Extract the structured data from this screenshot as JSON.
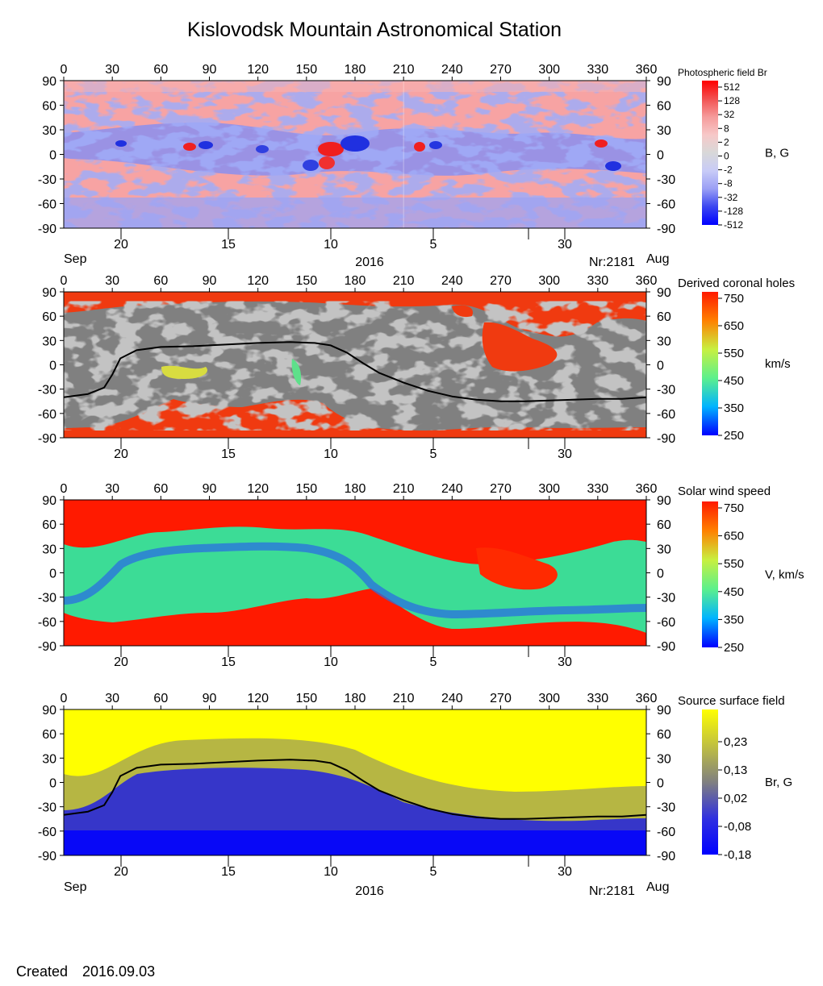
{
  "title": "Kislovodsk Mountain Astronomical Station",
  "created_label": "Created",
  "created_date": "2016.09.03",
  "bottom_axis": {
    "left_month": "Sep",
    "right_month": "Aug",
    "year": "2016",
    "rotation": "Nr:2181"
  },
  "colors": {
    "positive_field": "#f24a4a",
    "negative_field": "#4a55e6",
    "coronal_hole_dark": "#808080",
    "coronal_hole_light": "#c3c3c3",
    "fast_wind": "#ff1a00",
    "slow_wind": "#3cdc96",
    "neutral_line": "#000000",
    "source_surface_high": "#ffff00",
    "source_surface_low": "#0000ff"
  },
  "chart_data": [
    {
      "type": "heatmap",
      "id": "photospheric",
      "colorbar_title": "Photospheric field Br",
      "colorbar_unit": "B, G",
      "colorbar_ticks": [
        "512",
        "128",
        "32",
        "8",
        "2",
        "0",
        "-2",
        "-8",
        "-32",
        "-128",
        "-512"
      ],
      "x_ticks": [
        "0",
        "30",
        "60",
        "90",
        "120",
        "150",
        "180",
        "210",
        "240",
        "270",
        "300",
        "330",
        "360"
      ],
      "y_ticks": [
        "90",
        "60",
        "30",
        "0",
        "-30",
        "-60",
        "-90"
      ],
      "date_ticks": [
        "20",
        "15",
        "10",
        "5",
        "30"
      ],
      "xlim": [
        0,
        360
      ],
      "ylim": [
        -90,
        90
      ]
    },
    {
      "type": "heatmap",
      "id": "coronal-holes",
      "colorbar_title": "Derived coronal holes",
      "colorbar_unit": "km/s",
      "colorbar_ticks": [
        "750",
        "650",
        "550",
        "450",
        "350",
        "250"
      ],
      "x_ticks": [
        "0",
        "30",
        "60",
        "90",
        "120",
        "150",
        "180",
        "210",
        "240",
        "270",
        "300",
        "330",
        "360"
      ],
      "y_ticks": [
        "90",
        "60",
        "30",
        "0",
        "-30",
        "-60",
        "-90"
      ],
      "date_ticks": [
        "20",
        "15",
        "10",
        "5",
        "30"
      ],
      "xlim": [
        0,
        360
      ],
      "ylim": [
        -90,
        90
      ]
    },
    {
      "type": "heatmap",
      "id": "solar-wind",
      "colorbar_title": "Solar wind speed",
      "colorbar_unit": "V, km/s",
      "colorbar_ticks": [
        "750",
        "650",
        "550",
        "450",
        "350",
        "250"
      ],
      "x_ticks": [
        "0",
        "30",
        "60",
        "90",
        "120",
        "150",
        "180",
        "210",
        "240",
        "270",
        "300",
        "330",
        "360"
      ],
      "y_ticks": [
        "90",
        "60",
        "30",
        "0",
        "-30",
        "-60",
        "-90"
      ],
      "date_ticks": [
        "20",
        "15",
        "10",
        "5",
        "30"
      ],
      "xlim": [
        0,
        360
      ],
      "ylim": [
        -90,
        90
      ]
    },
    {
      "type": "heatmap",
      "id": "source-surface",
      "colorbar_title": "Source surface field",
      "colorbar_unit": "Br, G",
      "colorbar_ticks": [
        "0,23",
        "0,13",
        "0,02",
        "-0,08",
        "-0,18"
      ],
      "x_ticks": [
        "0",
        "30",
        "60",
        "90",
        "120",
        "150",
        "180",
        "210",
        "240",
        "270",
        "300",
        "330",
        "360"
      ],
      "y_ticks": [
        "90",
        "60",
        "30",
        "0",
        "-30",
        "-60",
        "-90"
      ],
      "date_ticks": [
        "20",
        "15",
        "10",
        "5",
        "30"
      ],
      "xlim": [
        0,
        360
      ],
      "ylim": [
        -90,
        90
      ]
    }
  ],
  "neutral_line": {
    "x": [
      0,
      15,
      25,
      30,
      35,
      45,
      60,
      80,
      100,
      120,
      140,
      155,
      165,
      175,
      185,
      195,
      210,
      225,
      240,
      255,
      270,
      285,
      300,
      315,
      330,
      345,
      360
    ],
    "y": [
      -40,
      -36,
      -28,
      -12,
      8,
      18,
      22,
      23,
      25,
      27,
      28,
      27,
      24,
      15,
      2,
      -10,
      -22,
      -32,
      -39,
      -43,
      -45,
      -45,
      -44,
      -43,
      -42,
      -42,
      -40
    ]
  }
}
